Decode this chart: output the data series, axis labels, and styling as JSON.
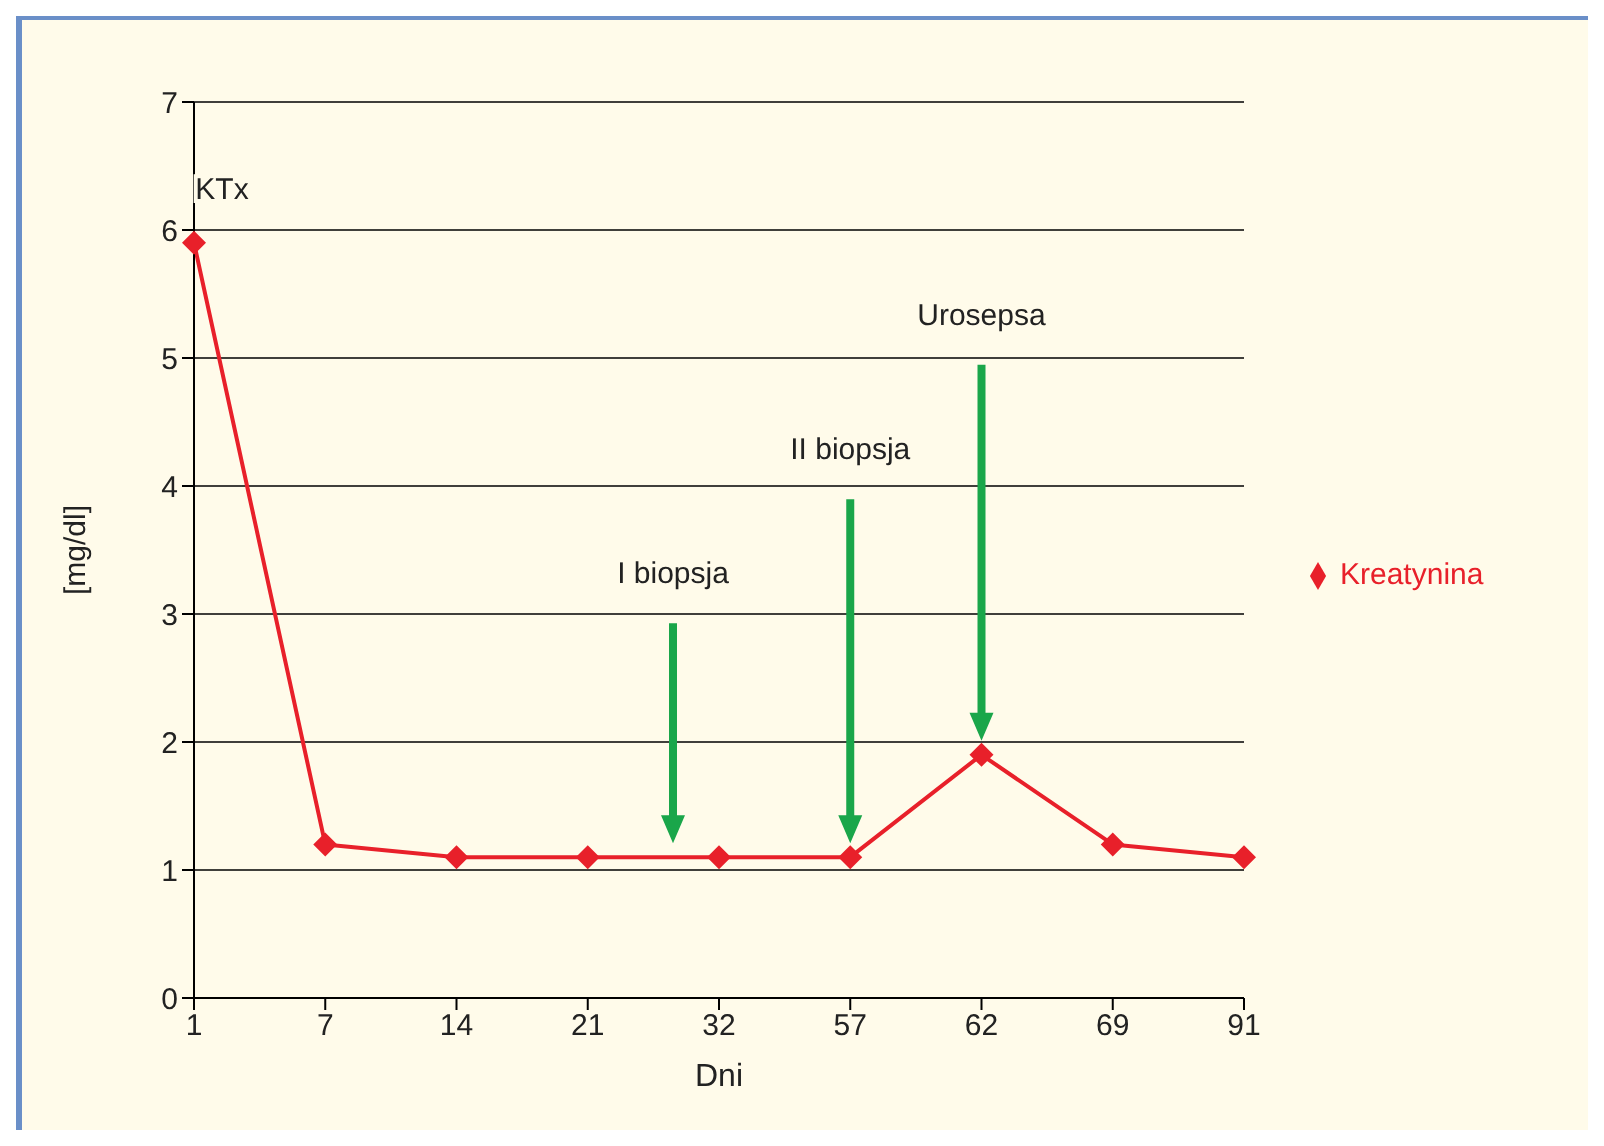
{
  "chart_data": {
    "type": "line",
    "xlabel": "Dni",
    "ylabel": "[mg/dl]",
    "categories": [
      "1",
      "7",
      "14",
      "21",
      "32",
      "57",
      "62",
      "69",
      "91"
    ],
    "series": [
      {
        "name": "Kreatynina",
        "color": "#e8202a",
        "values": [
          5.9,
          1.2,
          1.1,
          1.1,
          1.1,
          1.1,
          1.9,
          1.2,
          1.1
        ]
      }
    ],
    "ylim": [
      0,
      7
    ],
    "yticks": [
      0,
      1,
      2,
      3,
      4,
      5,
      6,
      7
    ],
    "grid": "y",
    "legend": "right",
    "marker": "diamond",
    "annotations": [
      "KTx",
      "I biopsja",
      "II biopsja",
      "Urosepsa"
    ]
  }
}
